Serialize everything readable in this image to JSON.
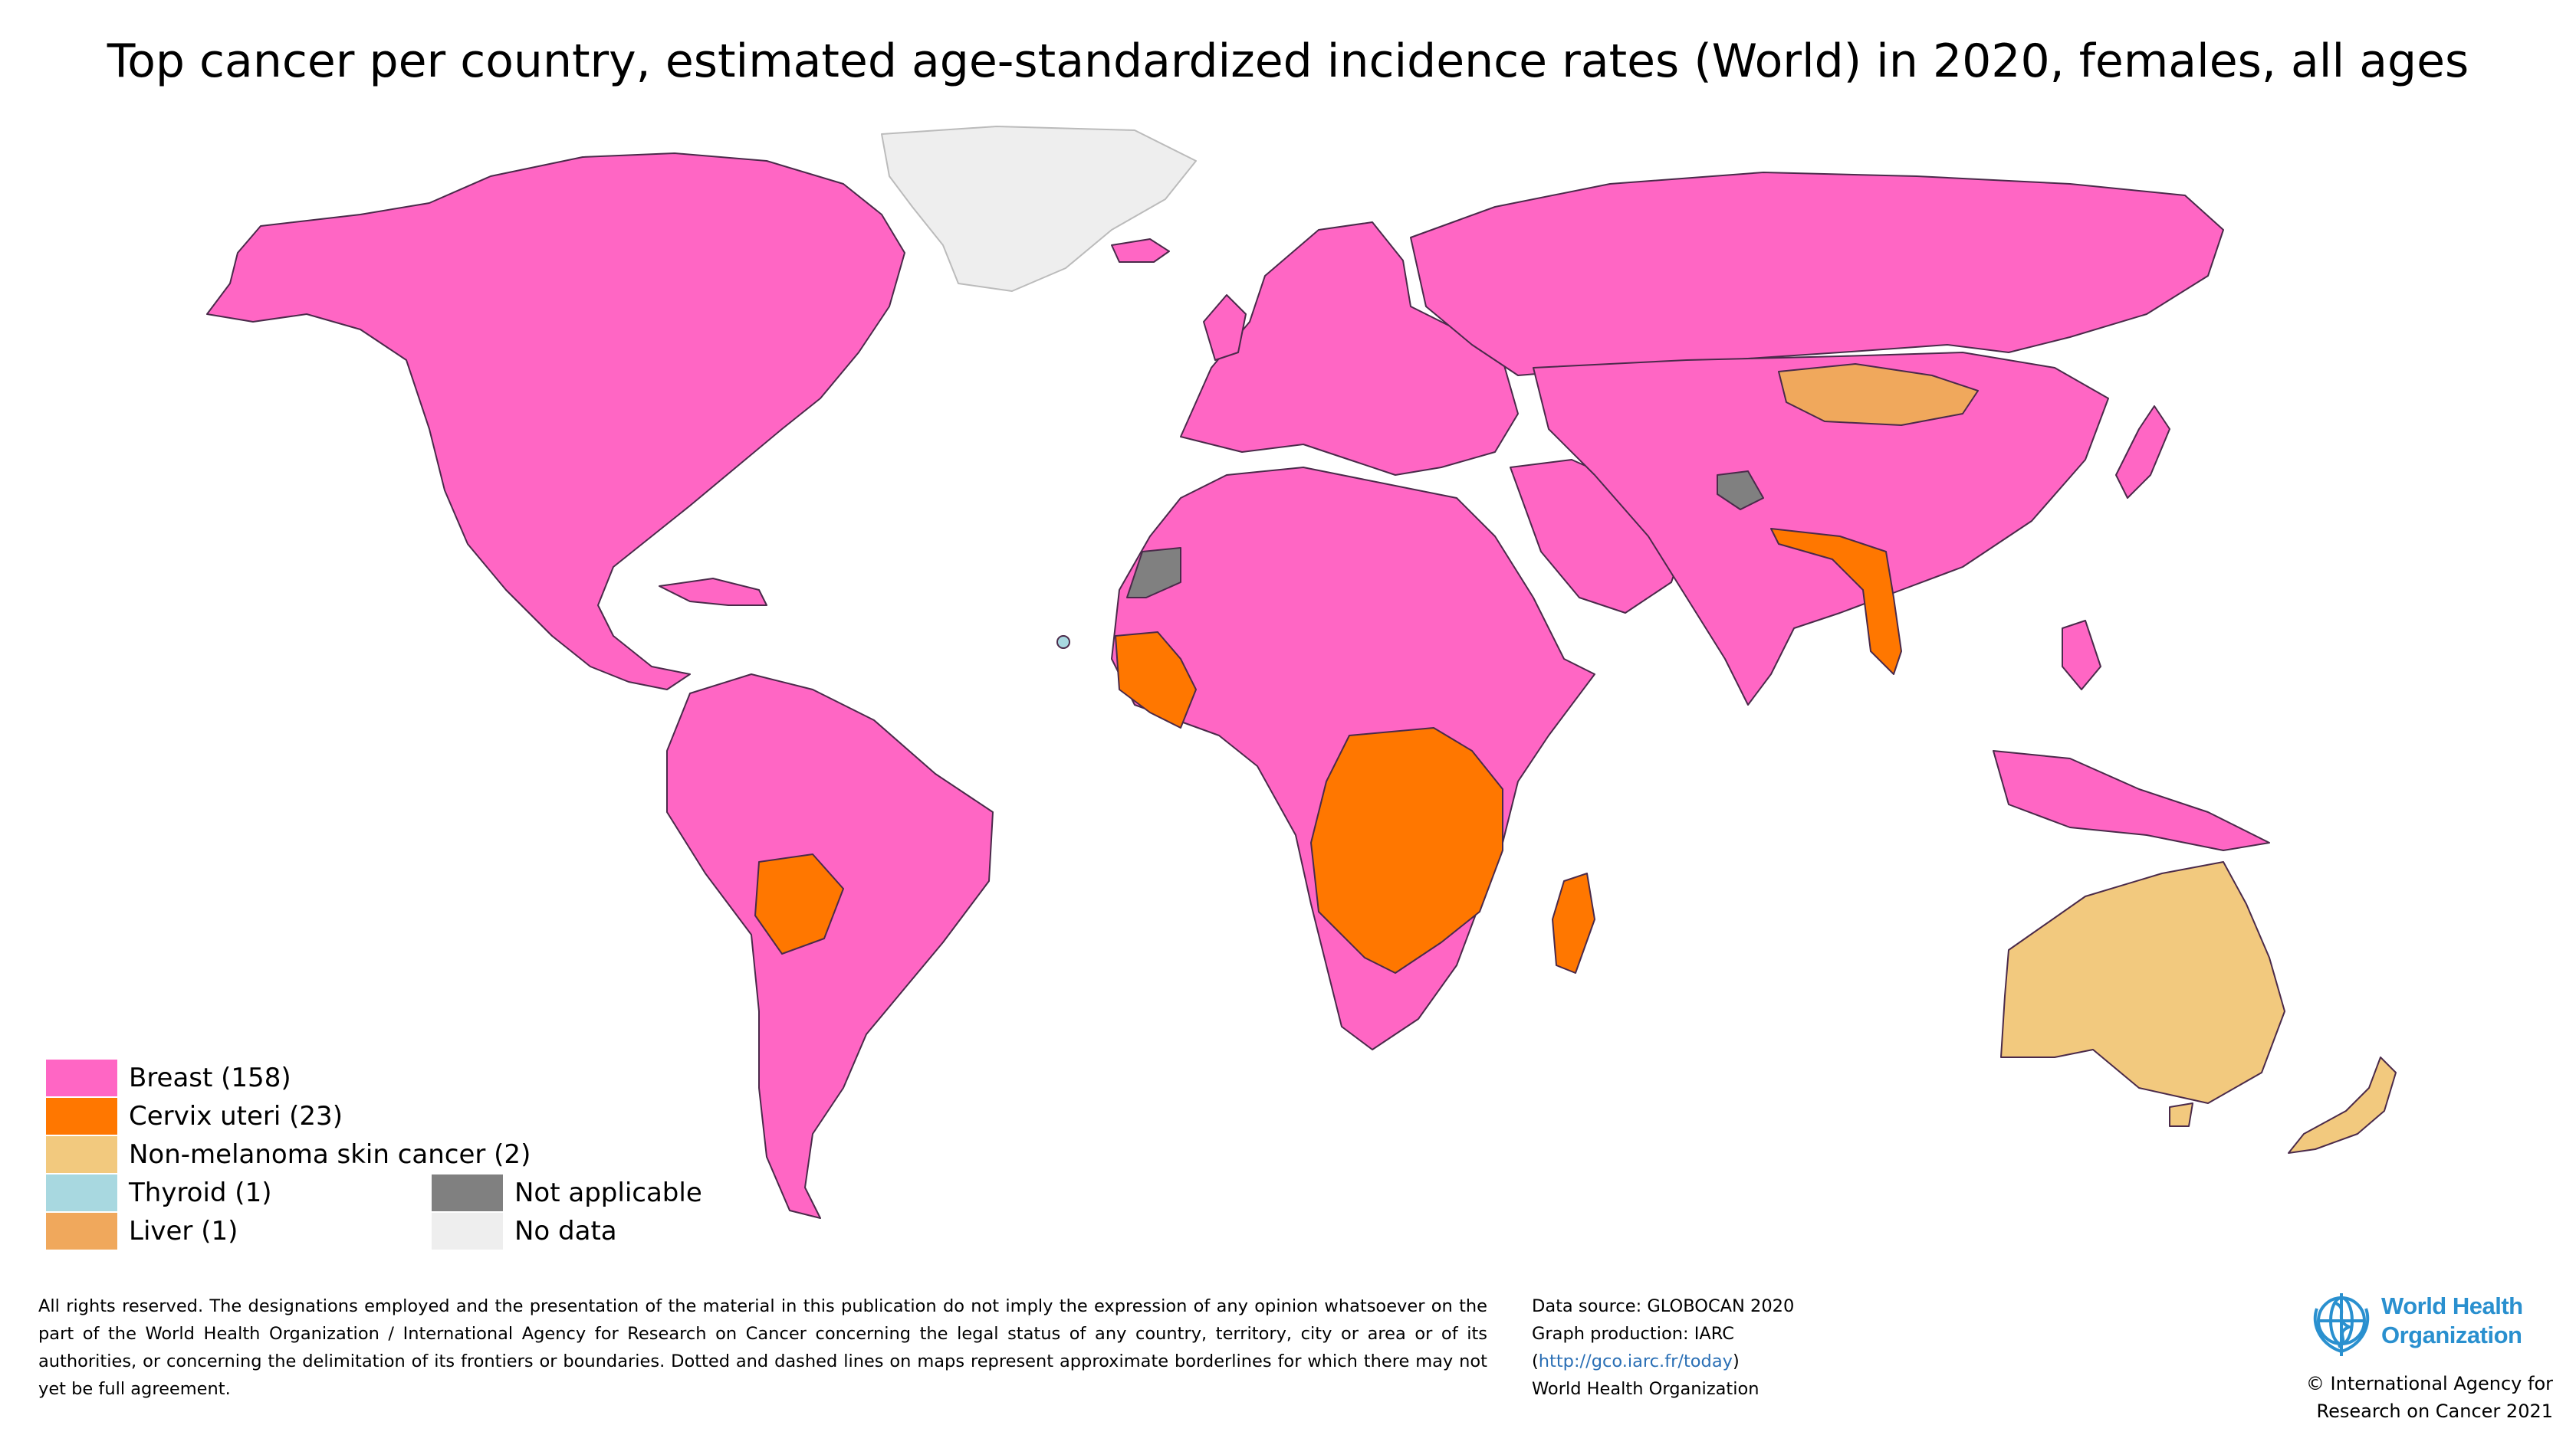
{
  "title": "Top cancer per country, estimated age-standardized incidence rates (World) in 2020, females, all ages",
  "colors": {
    "breast": "#ff66c4",
    "cervix": "#ff7700",
    "nmsc": "#f2c97e",
    "thyroid": "#a8d8e0",
    "liver": "#f0a85c",
    "not_applicable": "#808080",
    "no_data": "#eeeeee",
    "border": "#4a2a4a"
  },
  "legend": {
    "breast": "Breast (158)",
    "cervix": "Cervix uteri (23)",
    "nmsc": "Non-melanoma skin cancer (2)",
    "thyroid": "Thyroid (1)",
    "liver": "Liver (1)",
    "not_applicable": "Not applicable",
    "no_data": "No data"
  },
  "disclaimer": "All rights reserved. The designations employed and the presentation of the material in this publication do not imply the expression of any opinion whatsoever on the part of the World Health Organization / International Agency for Research on Cancer concerning the legal status of any country, territory, city or area or of its authorities, or concerning the delimitation of its frontiers or boundaries. Dotted and dashed lines on maps represent approximate borderlines for which there may not yet be full agreement.",
  "credits": {
    "source": "Data source: GLOBOCAN 2020",
    "production": "Graph production: IARC",
    "link_open": "(",
    "link": "http://gco.iarc.fr/today",
    "link_close": ")",
    "org": "World Health Organization"
  },
  "who_logo": {
    "line1": "World Health",
    "line2": "Organization",
    "emblem_icon": "who-emblem-icon"
  },
  "copyright": {
    "line1": "© International Agency for",
    "line2": "Research on Cancer 2021"
  }
}
